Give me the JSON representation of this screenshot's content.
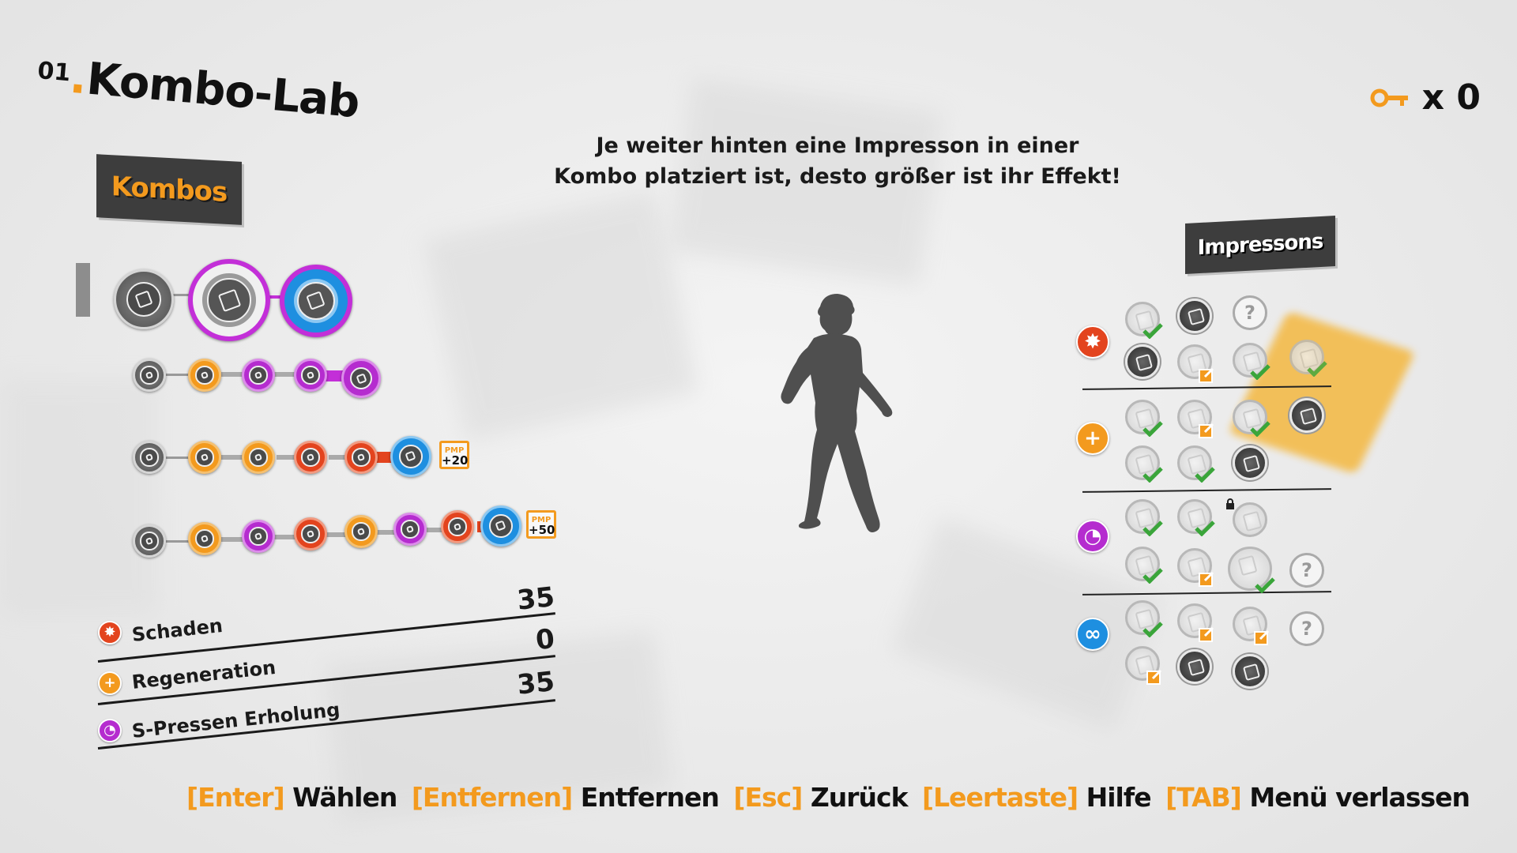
{
  "header": {
    "number": "01",
    "title": "Kombo-Lab"
  },
  "keys": {
    "count": "x 0"
  },
  "tip": {
    "line1": "Je weiter hinten eine Impresson in einer",
    "line2": "Kombo platziert ist, desto größer ist ihr Effekt!"
  },
  "tags": {
    "kombos": "Kombos",
    "impressons": "Impressons"
  },
  "combos": [
    {
      "orbs": [
        "grey",
        "ring-purple",
        "ring-blue"
      ],
      "selected": true
    },
    {
      "orbs": [
        "grey",
        "orange",
        "purple",
        "purple",
        "purple"
      ]
    },
    {
      "orbs": [
        "grey",
        "orange",
        "orange",
        "red",
        "red",
        "blue"
      ],
      "bonus_label": "PMP",
      "bonus_value": "+20"
    },
    {
      "orbs": [
        "grey",
        "orange",
        "purple",
        "red",
        "orange",
        "purple",
        "red",
        "blue"
      ],
      "bonus_label": "PMP",
      "bonus_value": "+50"
    }
  ],
  "stats": [
    {
      "label": "Schaden",
      "value": "35",
      "color": "#e3441e",
      "icon": "burst-icon"
    },
    {
      "label": "Regeneration",
      "value": "0",
      "color": "#f39a1e",
      "icon": "plus-icon"
    },
    {
      "label": "S-Pressen Erholung",
      "value": "35",
      "color": "#b52ccf",
      "icon": "clock-icon"
    }
  ],
  "impressons": {
    "categories": [
      {
        "name": "damage",
        "icon": "burst-icon",
        "color": "#e3441e"
      },
      {
        "name": "regeneration",
        "icon": "plus-icon",
        "color": "#f39a1e"
      },
      {
        "name": "recovery",
        "icon": "clock-icon",
        "color": "#b52ccf"
      },
      {
        "name": "link",
        "icon": "link-icon",
        "color": "#1e8fe0"
      }
    ],
    "question_mark": "?"
  },
  "footer": [
    {
      "key": "[Enter]",
      "action": "Wählen"
    },
    {
      "key": "[Entfernen]",
      "action": "Entfernen"
    },
    {
      "key": "[Esc]",
      "action": "Zurück"
    },
    {
      "key": "[Leertaste]",
      "action": "Hilfe"
    },
    {
      "key": "[TAB]",
      "action": "Menü verlassen"
    }
  ],
  "colors": {
    "accent": "#f39a1e",
    "red": "#e3441e",
    "purple": "#b52ccf",
    "blue": "#1e8fe0",
    "dark": "#3d3d3d"
  }
}
